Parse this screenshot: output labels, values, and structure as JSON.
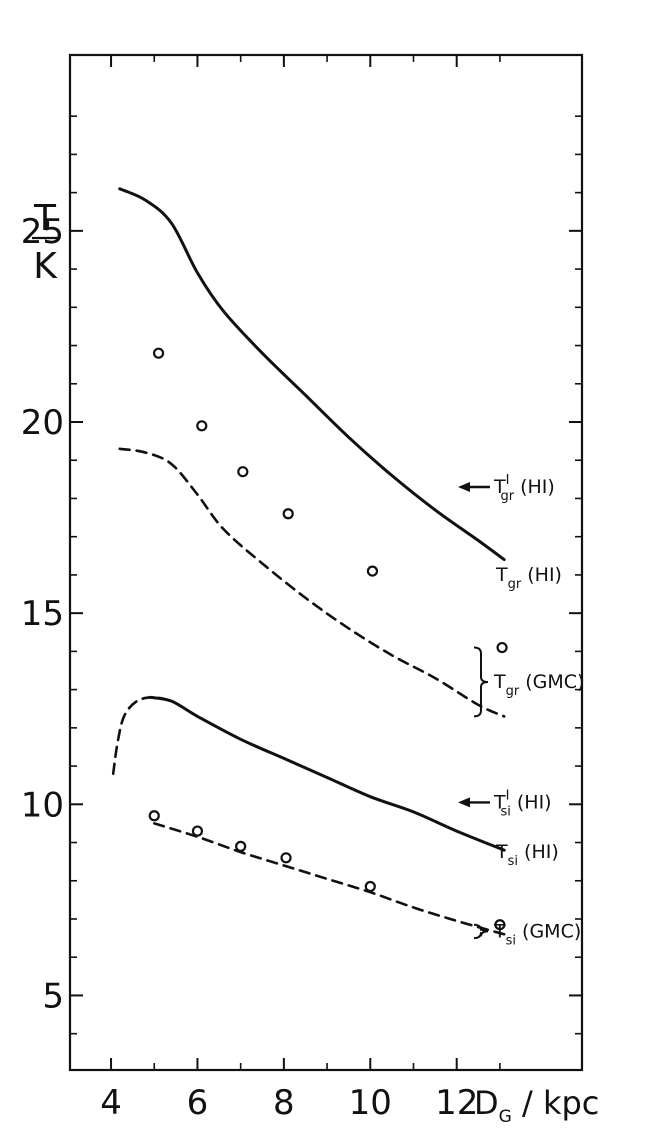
{
  "chart_data": {
    "type": "line",
    "title": "",
    "xlabel": "D_G / kpc",
    "ylabel": "T / K",
    "xlim": [
      3.05,
      14.9
    ],
    "ylim": [
      3.05,
      29.6
    ],
    "x_ticks": [
      4,
      6,
      8,
      10,
      12
    ],
    "y_ticks": [
      5,
      10,
      15,
      20,
      25
    ],
    "x_tick_labels": [
      "4",
      "6",
      "8",
      "10",
      "12"
    ],
    "y_tick_labels": [
      "5",
      "10",
      "15",
      "20",
      "25"
    ],
    "grid": false,
    "legend": "none",
    "series": [
      {
        "label_main": "T",
        "label_sub": "gr",
        "label_tail": " (HI)",
        "style": "solid",
        "x": [
          4.2,
          4.8,
          5.4,
          6.0,
          6.6,
          7.5,
          8.5,
          9.5,
          10.5,
          11.5,
          12.5,
          13.1
        ],
        "y": [
          26.1,
          25.8,
          25.2,
          23.9,
          22.9,
          21.8,
          20.7,
          19.6,
          18.6,
          17.7,
          16.9,
          16.4
        ]
      },
      {
        "label_main": "T",
        "label_sub": "gr",
        "label_tail": " (GMC)",
        "style": "dashed",
        "x": [
          4.2,
          4.8,
          5.4,
          6.0,
          6.6,
          7.5,
          8.5,
          9.5,
          10.5,
          11.5,
          12.5,
          13.1
        ],
        "y": [
          19.3,
          19.2,
          18.9,
          18.1,
          17.2,
          16.3,
          15.4,
          14.6,
          13.9,
          13.3,
          12.6,
          12.3
        ]
      },
      {
        "label_main": "T",
        "label_sub": "si",
        "label_tail": " (HI)",
        "style": "solid",
        "x": [
          4.9,
          5.4,
          6.0,
          7.0,
          8.0,
          9.0,
          10.0,
          11.0,
          12.0,
          13.1
        ],
        "y": [
          12.8,
          12.7,
          12.3,
          11.7,
          11.2,
          10.7,
          10.2,
          9.8,
          9.3,
          8.8
        ]
      },
      {
        "label_main": "",
        "label_sub": "",
        "label_tail": "",
        "style": "dashed",
        "x": [
          4.05,
          4.15,
          4.3,
          4.6,
          5.0,
          5.4
        ],
        "y": [
          10.8,
          11.6,
          12.3,
          12.7,
          12.8,
          12.7
        ]
      },
      {
        "label_main": "T",
        "label_sub": "si",
        "label_tail": " (GMC)",
        "style": "dashed",
        "x": [
          5.0,
          6.0,
          7.0,
          8.0,
          9.0,
          10.0,
          11.0,
          12.0,
          13.1
        ],
        "y": [
          9.5,
          9.15,
          8.75,
          8.4,
          8.05,
          7.7,
          7.3,
          6.95,
          6.6
        ]
      }
    ],
    "points": [
      {
        "x": 5.1,
        "y": 21.8
      },
      {
        "x": 6.1,
        "y": 19.9
      },
      {
        "x": 7.05,
        "y": 18.7
      },
      {
        "x": 8.1,
        "y": 17.6
      },
      {
        "x": 10.05,
        "y": 16.1
      },
      {
        "x": 13.05,
        "y": 14.1
      },
      {
        "x": 5.0,
        "y": 9.7
      },
      {
        "x": 6.0,
        "y": 9.3
      },
      {
        "x": 7.0,
        "y": 8.9
      },
      {
        "x": 8.05,
        "y": 8.6
      },
      {
        "x": 10.0,
        "y": 7.85
      },
      {
        "x": 13.0,
        "y": 6.85
      }
    ],
    "arrow_annotations": [
      {
        "y": 18.3,
        "label_main": "T",
        "label_sub": "gr",
        "label_sup": "I",
        "label_tail": " (HI)"
      },
      {
        "y": 10.05,
        "label_main": "T",
        "label_sub": "si",
        "label_sup": "I",
        "label_tail": " (HI)"
      }
    ]
  }
}
